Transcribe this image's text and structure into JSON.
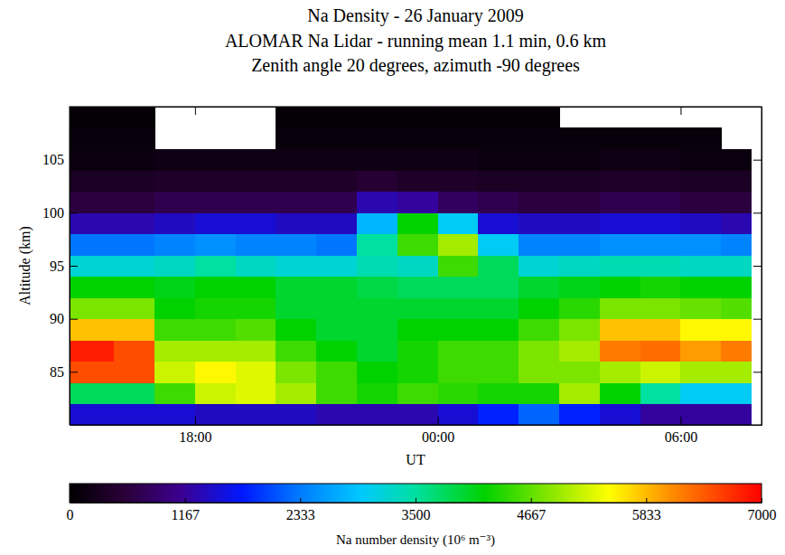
{
  "chart_data": {
    "type": "heatmap",
    "title": "Na Density - 26 January 2009",
    "subtitle": [
      "ALOMAR Na Lidar - running mean 1.1 min, 0.6 km",
      "Zenith angle 20 degrees, azimuth -90 degrees"
    ],
    "x_label": "UT",
    "y_label": "Altitude (km)",
    "xlim": [
      14.9,
      32.0
    ],
    "xticks": [
      {
        "value": 18,
        "label": "18:00"
      },
      {
        "value": 24,
        "label": "00:00"
      },
      {
        "value": 30,
        "label": "06:00"
      }
    ],
    "ylim": [
      80,
      110
    ],
    "yticks": [
      85,
      90,
      95,
      100,
      105
    ],
    "x_edges": [
      14.9,
      16,
      17,
      18,
      19,
      20,
      21,
      22,
      23,
      24,
      25,
      26,
      27,
      28,
      29,
      30,
      31,
      31.75
    ],
    "y_edges": [
      80,
      82,
      84,
      86,
      88,
      90,
      92,
      94,
      96,
      98,
      100,
      102,
      104,
      106,
      108,
      110
    ],
    "values": [
      [
        1500,
        1500,
        1500,
        1400,
        1400,
        1400,
        1300,
        1300,
        1300,
        1500,
        1800,
        2200,
        1800,
        1500,
        1200,
        1200,
        1200
      ],
      [
        3800,
        3800,
        4500,
        5200,
        5300,
        5000,
        4500,
        4300,
        4500,
        4400,
        4300,
        4300,
        5000,
        4200,
        3500,
        3000,
        3000
      ],
      [
        6500,
        6500,
        5200,
        5500,
        5300,
        4800,
        4500,
        4200,
        4300,
        4500,
        4500,
        4800,
        4800,
        5000,
        5200,
        5000,
        5000
      ],
      [
        6800,
        6500,
        5000,
        5000,
        5000,
        4500,
        4200,
        4000,
        4300,
        4500,
        4500,
        4800,
        5000,
        6200,
        6300,
        6000,
        6200
      ],
      [
        5800,
        5800,
        4500,
        4500,
        4600,
        4200,
        4000,
        4000,
        4200,
        4200,
        4200,
        4500,
        4800,
        5800,
        5800,
        5500,
        5500
      ],
      [
        4800,
        4800,
        4200,
        4300,
        4300,
        4000,
        4000,
        4000,
        4000,
        4000,
        4000,
        4200,
        4400,
        4800,
        4800,
        4700,
        4600
      ],
      [
        4200,
        4200,
        4100,
        4200,
        4200,
        4000,
        4000,
        3900,
        3800,
        3800,
        3800,
        4000,
        4100,
        4200,
        4300,
        4200,
        4200
      ],
      [
        3200,
        3200,
        3300,
        3500,
        3300,
        3200,
        3200,
        3400,
        3300,
        4500,
        3800,
        3200,
        3300,
        3400,
        3400,
        3300,
        3300
      ],
      [
        2300,
        2300,
        2400,
        2500,
        2400,
        2400,
        2300,
        3500,
        4500,
        5000,
        3000,
        2400,
        2400,
        2500,
        2500,
        2500,
        2400
      ],
      [
        1300,
        1300,
        1400,
        1500,
        1500,
        1400,
        1400,
        2800,
        4200,
        3000,
        1500,
        1400,
        1400,
        1500,
        1500,
        1400,
        1300
      ],
      [
        600,
        600,
        700,
        700,
        700,
        700,
        700,
        1300,
        1200,
        800,
        700,
        600,
        600,
        700,
        700,
        600,
        600
      ],
      [
        350,
        350,
        400,
        400,
        400,
        400,
        400,
        500,
        400,
        400,
        350,
        350,
        350,
        400,
        400,
        350,
        350
      ],
      [
        150,
        150,
        200,
        200,
        200,
        200,
        200,
        200,
        200,
        200,
        150,
        150,
        150,
        200,
        200,
        150,
        150
      ],
      [
        100,
        100,
        null,
        null,
        null,
        100,
        100,
        100,
        100,
        100,
        100,
        100,
        100,
        100,
        100,
        100,
        null
      ],
      [
        50,
        50,
        null,
        null,
        null,
        50,
        50,
        50,
        50,
        50,
        50,
        50,
        null,
        null,
        null,
        null,
        null
      ]
    ],
    "colorbar": {
      "range": [
        0,
        7000
      ],
      "ticks": [
        0,
        1167,
        2333,
        3500,
        4667,
        5833,
        7000
      ],
      "label": "Na number density (10⁶ m⁻³)"
    }
  }
}
